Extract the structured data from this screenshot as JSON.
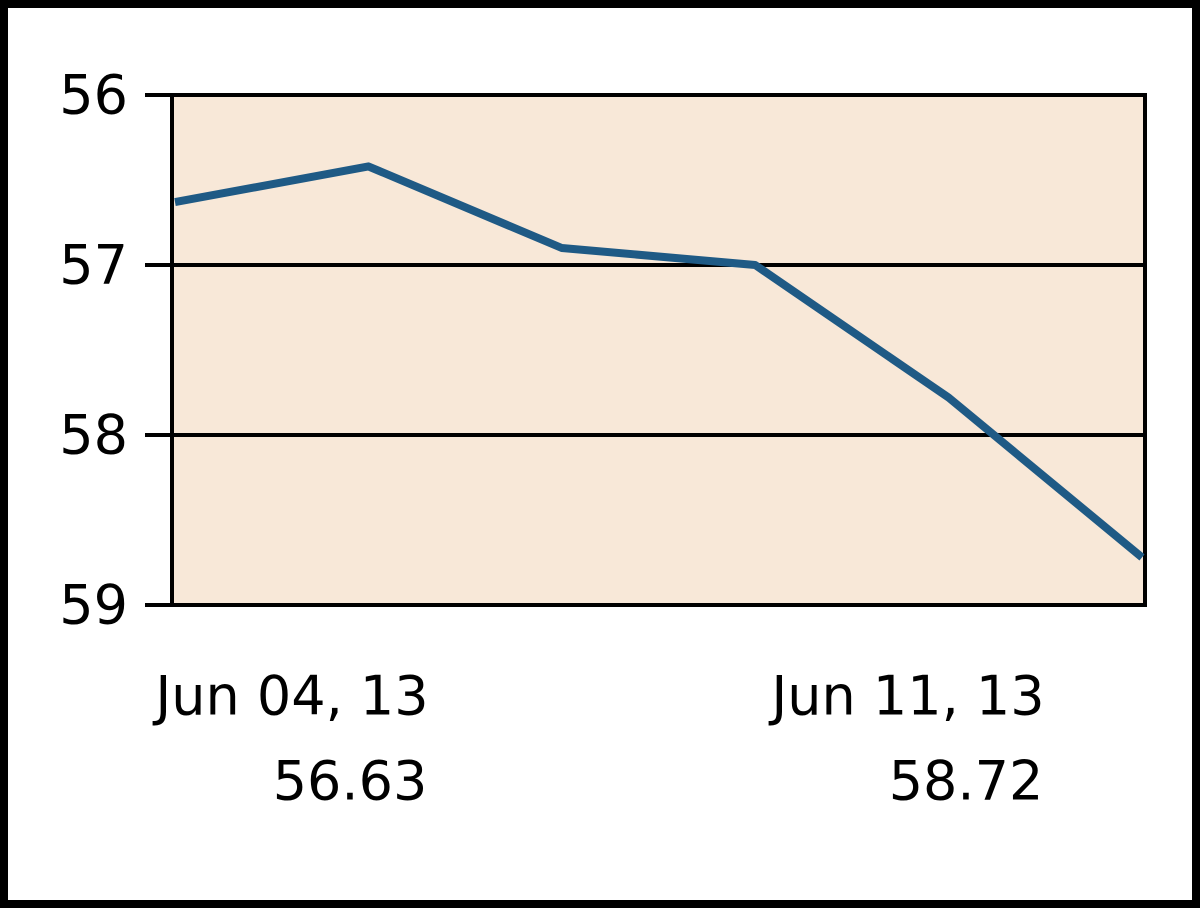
{
  "chart_data": {
    "type": "line",
    "categories": [
      "Jun 04, 13",
      null,
      null,
      null,
      null,
      "Jun 11, 13"
    ],
    "values": [
      56.63,
      56.42,
      56.9,
      57.0,
      57.78,
      58.72
    ],
    "color": "#1f5a85",
    "ylim": [
      56,
      59
    ],
    "y_reversed": true,
    "yticks": [
      56,
      57,
      58,
      59
    ],
    "grid": true,
    "plot_background": "#f8e8d8"
  }
}
